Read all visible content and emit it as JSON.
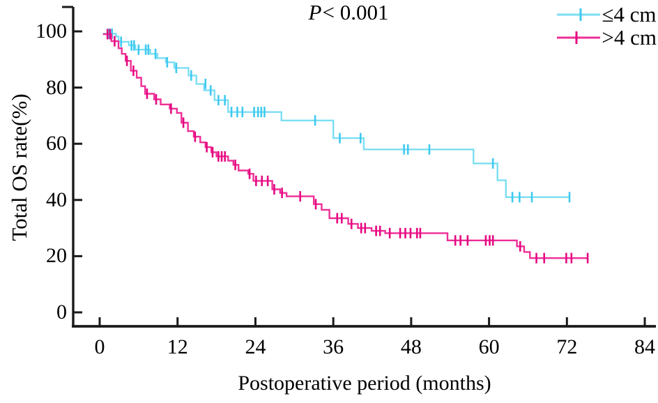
{
  "figure": {
    "background": "#ffffff",
    "text_color": "#000000"
  },
  "chart_data": {
    "type": "line",
    "subtype": "kaplan-meier-step-survival",
    "title": "P < 0.001",
    "title_parts": {
      "italic": "P",
      "rest": "< 0.001"
    },
    "xlabel": "Postoperative period (months)",
    "ylabel": "Total OS rate(%)",
    "xlim": [
      0,
      84
    ],
    "ylim": [
      0,
      100
    ],
    "x_ticks": [
      0,
      12,
      24,
      36,
      48,
      60,
      72,
      84
    ],
    "y_ticks": [
      0,
      20,
      40,
      60,
      80,
      100
    ],
    "grid": false,
    "legend_position": "top-right",
    "axis_color": "#1a1a1a",
    "series": [
      {
        "name": "≤4 cm",
        "color": "#7BDEF4",
        "censor_color": "#3FC9F0",
        "end_month": 72.4,
        "steps": [
          [
            0.5,
            99.2
          ],
          [
            2.5,
            98.2
          ],
          [
            2.9,
            96.3
          ],
          [
            4.5,
            95.0
          ],
          [
            5.5,
            93.5
          ],
          [
            7.8,
            92.0
          ],
          [
            8.9,
            90.5
          ],
          [
            10.2,
            89.0
          ],
          [
            11.5,
            87.0
          ],
          [
            13.7,
            84.3
          ],
          [
            14.9,
            81.3
          ],
          [
            16.1,
            79.0
          ],
          [
            17.7,
            75.5
          ],
          [
            19.8,
            71.3
          ],
          [
            28.0,
            68.3
          ],
          [
            36.0,
            62.0
          ],
          [
            40.7,
            58.0
          ],
          [
            57.6,
            53.0
          ],
          [
            61.3,
            47.0
          ],
          [
            62.6,
            41.0
          ]
        ],
        "censors": [
          [
            1.4,
            99.2
          ],
          [
            1.9,
            99.2
          ],
          [
            3.3,
            96.3
          ],
          [
            4.9,
            95.0
          ],
          [
            5.3,
            95.0
          ],
          [
            6.0,
            93.5
          ],
          [
            7.1,
            93.5
          ],
          [
            7.5,
            93.5
          ],
          [
            8.6,
            92.0
          ],
          [
            10.4,
            89.0
          ],
          [
            11.8,
            87.0
          ],
          [
            14.1,
            84.3
          ],
          [
            16.3,
            81.3
          ],
          [
            17.1,
            79.0
          ],
          [
            18.3,
            75.5
          ],
          [
            19.3,
            75.5
          ],
          [
            20.3,
            71.3
          ],
          [
            21.2,
            71.3
          ],
          [
            22.0,
            71.3
          ],
          [
            23.8,
            71.3
          ],
          [
            24.4,
            71.3
          ],
          [
            24.9,
            71.3
          ],
          [
            25.4,
            71.3
          ],
          [
            33.2,
            68.3
          ],
          [
            37.0,
            62.0
          ],
          [
            40.2,
            62.0
          ],
          [
            46.9,
            58.0
          ],
          [
            47.5,
            58.0
          ],
          [
            50.8,
            58.0
          ],
          [
            60.6,
            53.0
          ],
          [
            63.6,
            41.0
          ],
          [
            64.7,
            41.0
          ],
          [
            66.6,
            41.0
          ],
          [
            72.4,
            41.0
          ]
        ]
      },
      {
        "name": ">4 cm",
        "color": "#EF2D96",
        "censor_color": "#E50880",
        "end_month": 75.2,
        "steps": [
          [
            0.5,
            99.0
          ],
          [
            1.8,
            96.5
          ],
          [
            2.9,
            94.0
          ],
          [
            3.4,
            92.0
          ],
          [
            4.0,
            89.5
          ],
          [
            4.8,
            86.0
          ],
          [
            5.7,
            83.5
          ],
          [
            6.4,
            80.5
          ],
          [
            7.0,
            77.8
          ],
          [
            8.4,
            75.8
          ],
          [
            9.4,
            74.0
          ],
          [
            10.8,
            72.5
          ],
          [
            11.9,
            71.0
          ],
          [
            12.6,
            67.5
          ],
          [
            13.6,
            64.5
          ],
          [
            14.5,
            62.5
          ],
          [
            15.5,
            60.5
          ],
          [
            16.3,
            58.8
          ],
          [
            17.2,
            57.0
          ],
          [
            18.0,
            55.5
          ],
          [
            19.8,
            54.0
          ],
          [
            20.6,
            52.5
          ],
          [
            21.4,
            50.5
          ],
          [
            22.9,
            49.3
          ],
          [
            23.7,
            46.8
          ],
          [
            26.6,
            43.8
          ],
          [
            27.8,
            42.5
          ],
          [
            28.8,
            41.3
          ],
          [
            33.0,
            38.5
          ],
          [
            34.2,
            36.5
          ],
          [
            35.4,
            33.5
          ],
          [
            38.3,
            31.5
          ],
          [
            39.8,
            30.0
          ],
          [
            41.9,
            29.0
          ],
          [
            44.0,
            28.2
          ],
          [
            53.6,
            25.6
          ],
          [
            64.3,
            23.5
          ],
          [
            65.4,
            21.5
          ],
          [
            66.3,
            19.3
          ]
        ],
        "censors": [
          [
            1.2,
            99.0
          ],
          [
            1.6,
            99.0
          ],
          [
            2.3,
            96.5
          ],
          [
            4.2,
            89.5
          ],
          [
            5.2,
            86.0
          ],
          [
            7.3,
            77.8
          ],
          [
            8.7,
            75.8
          ],
          [
            11.0,
            72.5
          ],
          [
            12.9,
            67.5
          ],
          [
            14.7,
            62.5
          ],
          [
            16.5,
            58.8
          ],
          [
            17.4,
            57.0
          ],
          [
            18.3,
            55.5
          ],
          [
            18.8,
            55.5
          ],
          [
            19.3,
            55.5
          ],
          [
            20.9,
            52.5
          ],
          [
            23.1,
            49.3
          ],
          [
            24.1,
            46.8
          ],
          [
            25.0,
            46.8
          ],
          [
            25.9,
            46.8
          ],
          [
            26.9,
            43.8
          ],
          [
            28.1,
            42.5
          ],
          [
            30.9,
            41.3
          ],
          [
            33.3,
            38.5
          ],
          [
            36.6,
            33.5
          ],
          [
            37.3,
            33.5
          ],
          [
            38.8,
            31.5
          ],
          [
            40.3,
            30.0
          ],
          [
            40.9,
            30.0
          ],
          [
            42.6,
            29.0
          ],
          [
            43.2,
            29.0
          ],
          [
            44.7,
            28.2
          ],
          [
            46.3,
            28.2
          ],
          [
            47.1,
            28.2
          ],
          [
            47.9,
            28.2
          ],
          [
            48.9,
            28.2
          ],
          [
            49.4,
            28.2
          ],
          [
            54.8,
            25.6
          ],
          [
            55.6,
            25.6
          ],
          [
            56.7,
            25.6
          ],
          [
            59.5,
            25.6
          ],
          [
            60.1,
            25.6
          ],
          [
            60.6,
            25.6
          ],
          [
            64.8,
            23.5
          ],
          [
            67.3,
            19.3
          ],
          [
            68.5,
            19.3
          ],
          [
            71.9,
            19.3
          ],
          [
            72.7,
            19.3
          ],
          [
            75.2,
            19.3
          ]
        ]
      }
    ]
  }
}
